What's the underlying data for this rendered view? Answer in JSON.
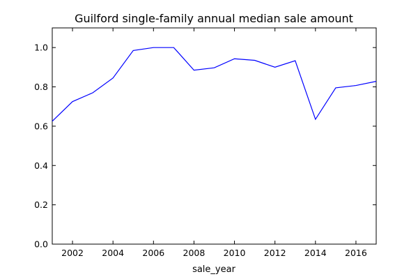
{
  "chart_data": {
    "type": "line",
    "title": "Guilford single-family annual median sale amount",
    "xlabel": "sale_year",
    "ylabel": "",
    "xlim": [
      2001,
      2017
    ],
    "ylim": [
      0.0,
      1.1
    ],
    "grid": false,
    "x_ticks": [
      2002,
      2004,
      2006,
      2008,
      2010,
      2012,
      2014,
      2016
    ],
    "y_ticks": [
      0.0,
      0.2,
      0.4,
      0.6,
      0.8,
      1.0
    ],
    "y_tick_labels": [
      "0.0",
      "0.2",
      "0.4",
      "0.6",
      "0.8",
      "1.0"
    ],
    "line_color": "#0000ff",
    "series": [
      {
        "x": [
          2001,
          2002,
          2003,
          2004,
          2005,
          2006,
          2007,
          2008,
          2009,
          2010,
          2011,
          2012,
          2013,
          2014,
          2015,
          2016,
          2017
        ],
        "values": [
          0.625,
          0.725,
          0.77,
          0.845,
          0.985,
          1.0,
          1.0,
          0.885,
          0.897,
          0.943,
          0.935,
          0.9,
          0.933,
          0.635,
          0.795,
          0.807,
          0.828
        ]
      }
    ]
  }
}
